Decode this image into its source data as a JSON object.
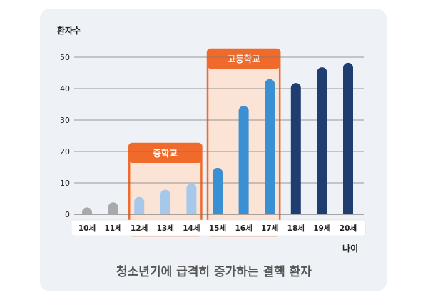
{
  "chart_data": {
    "type": "bar",
    "ylabel": "환자수",
    "xlabel": "나이",
    "caption": "청소년기에 급격히 증가하는 결핵 환자",
    "ylim": [
      0,
      50
    ],
    "yticks": [
      "0",
      "10",
      "20",
      "30",
      "40",
      "50"
    ],
    "categories": [
      "10세",
      "11세",
      "12세",
      "13세",
      "14세",
      "15세",
      "16세",
      "17세",
      "18세",
      "19세",
      "20세"
    ],
    "values": [
      2.2,
      3.8,
      5.5,
      7.8,
      9.8,
      14.8,
      34.5,
      43,
      41.8,
      46.8,
      48.2
    ],
    "groups": [
      {
        "label": "중학교",
        "from": 2,
        "to": 4
      },
      {
        "label": "고등학교",
        "from": 5,
        "to": 7
      }
    ],
    "colors": {
      "bars": [
        "#a9a9a9",
        "#a9a9a9",
        "#a6c8ea",
        "#a6c8ea",
        "#a6c8ea",
        "#3b8fd3",
        "#3b8fd3",
        "#3b8fd3",
        "#1f3d70",
        "#1f3d70",
        "#1f3d70"
      ],
      "group_fill": "#fbe3d6",
      "group_stroke": "#f06a2b",
      "grid": "#777777",
      "text": "#222222",
      "caption": "#555555"
    },
    "grid": true
  }
}
